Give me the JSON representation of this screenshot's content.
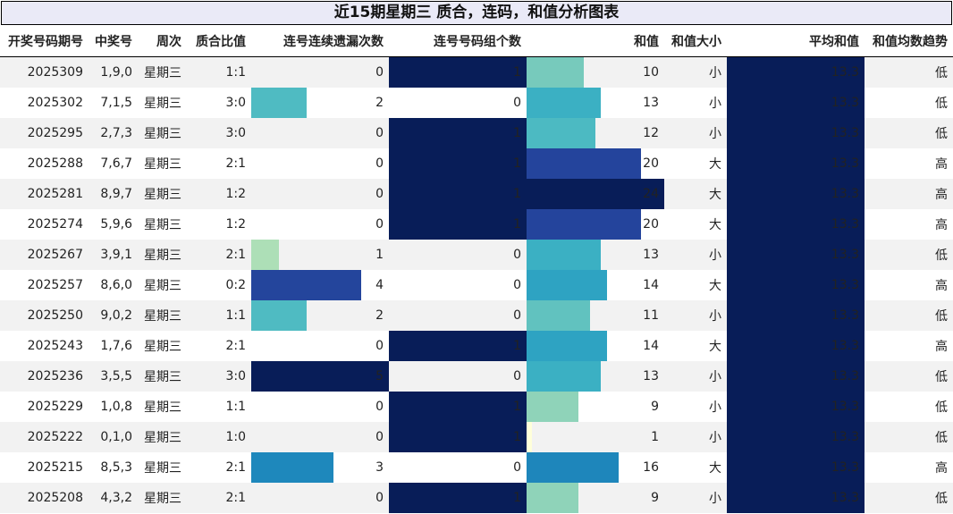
{
  "title": "近15期星期三 质合，连码，和值分析图表",
  "columns": [
    "开奖号码期号",
    "中奖号",
    "周次",
    "质合比值",
    "连号连续遗漏次数",
    "连号号码组个数",
    "和值",
    "和值大小",
    "平均和值",
    "和值均数趋势"
  ],
  "chart_data": {
    "type": "table",
    "title": "近15期星期三 质合，连码，和值分析图表",
    "rows": [
      {
        "issue": "2025309",
        "numbers": "1,9,0",
        "weekday": "星期三",
        "ratio": "1:1",
        "miss": 0,
        "groups": 1,
        "sum": 10,
        "size": "小",
        "avg": "13.3",
        "trend": "低"
      },
      {
        "issue": "2025302",
        "numbers": "7,1,5",
        "weekday": "星期三",
        "ratio": "3:0",
        "miss": 2,
        "groups": 0,
        "sum": 13,
        "size": "小",
        "avg": "13.3",
        "trend": "低"
      },
      {
        "issue": "2025295",
        "numbers": "2,7,3",
        "weekday": "星期三",
        "ratio": "3:0",
        "miss": 0,
        "groups": 1,
        "sum": 12,
        "size": "小",
        "avg": "13.3",
        "trend": "低"
      },
      {
        "issue": "2025288",
        "numbers": "7,6,7",
        "weekday": "星期三",
        "ratio": "2:1",
        "miss": 0,
        "groups": 1,
        "sum": 20,
        "size": "大",
        "avg": "13.3",
        "trend": "高"
      },
      {
        "issue": "2025281",
        "numbers": "8,9,7",
        "weekday": "星期三",
        "ratio": "1:2",
        "miss": 0,
        "groups": 1,
        "sum": 24,
        "size": "大",
        "avg": "13.3",
        "trend": "高"
      },
      {
        "issue": "2025274",
        "numbers": "5,9,6",
        "weekday": "星期三",
        "ratio": "1:2",
        "miss": 0,
        "groups": 1,
        "sum": 20,
        "size": "大",
        "avg": "13.3",
        "trend": "高"
      },
      {
        "issue": "2025267",
        "numbers": "3,9,1",
        "weekday": "星期三",
        "ratio": "2:1",
        "miss": 1,
        "groups": 0,
        "sum": 13,
        "size": "小",
        "avg": "13.3",
        "trend": "低"
      },
      {
        "issue": "2025257",
        "numbers": "8,6,0",
        "weekday": "星期三",
        "ratio": "0:2",
        "miss": 4,
        "groups": 0,
        "sum": 14,
        "size": "大",
        "avg": "13.3",
        "trend": "高"
      },
      {
        "issue": "2025250",
        "numbers": "9,0,2",
        "weekday": "星期三",
        "ratio": "1:1",
        "miss": 2,
        "groups": 0,
        "sum": 11,
        "size": "小",
        "avg": "13.3",
        "trend": "低"
      },
      {
        "issue": "2025243",
        "numbers": "1,7,6",
        "weekday": "星期三",
        "ratio": "2:1",
        "miss": 0,
        "groups": 1,
        "sum": 14,
        "size": "大",
        "avg": "13.3",
        "trend": "高"
      },
      {
        "issue": "2025236",
        "numbers": "3,5,5",
        "weekday": "星期三",
        "ratio": "3:0",
        "miss": 5,
        "groups": 0,
        "sum": 13,
        "size": "小",
        "avg": "13.3",
        "trend": "低"
      },
      {
        "issue": "2025229",
        "numbers": "1,0,8",
        "weekday": "星期三",
        "ratio": "1:1",
        "miss": 0,
        "groups": 1,
        "sum": 9,
        "size": "小",
        "avg": "13.3",
        "trend": "低"
      },
      {
        "issue": "2025222",
        "numbers": "0,1,0",
        "weekday": "星期三",
        "ratio": "1:0",
        "miss": 0,
        "groups": 1,
        "sum": 1,
        "size": "小",
        "avg": "13.3",
        "trend": "低"
      },
      {
        "issue": "2025215",
        "numbers": "8,5,3",
        "weekday": "星期三",
        "ratio": "2:1",
        "miss": 3,
        "groups": 0,
        "sum": 16,
        "size": "大",
        "avg": "13.3",
        "trend": "高"
      },
      {
        "issue": "2025208",
        "numbers": "4,3,2",
        "weekday": "星期三",
        "ratio": "2:1",
        "miss": 0,
        "groups": 1,
        "sum": 9,
        "size": "小",
        "avg": "13.3",
        "trend": "低"
      }
    ],
    "bar_columns": {
      "miss_max": 5,
      "groups_max": 1,
      "sum_max": 24
    },
    "colorscale": "YlGnBu"
  }
}
